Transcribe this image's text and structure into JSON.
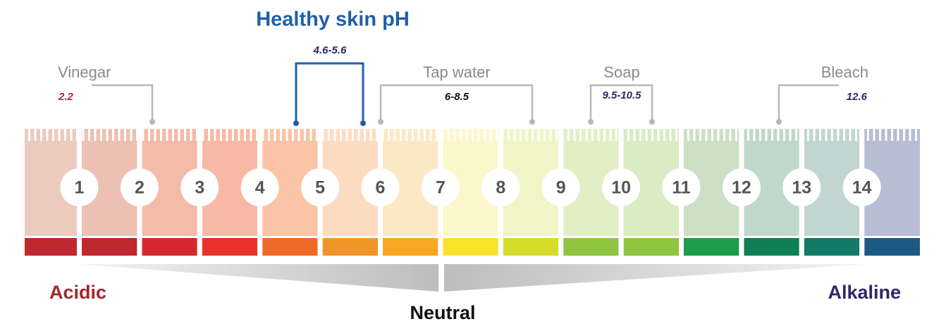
{
  "title": "Healthy skin pH",
  "healthy_range": "4.6-5.6",
  "substances": [
    {
      "name": "Vinegar",
      "ph": 2.2
    },
    {
      "name": "Tap water",
      "ph": "6-8.5"
    },
    {
      "name": "Soap",
      "ph": "9.5-10.5"
    },
    {
      "name": "Bleach",
      "ph": 12.6
    }
  ],
  "scale": [
    1,
    2,
    3,
    4,
    5,
    6,
    7,
    8,
    9,
    10,
    11,
    12,
    13,
    14
  ],
  "ends": {
    "acidic": "Acidic",
    "neutral": "Neutral",
    "alkaline": "Alkaline"
  }
}
